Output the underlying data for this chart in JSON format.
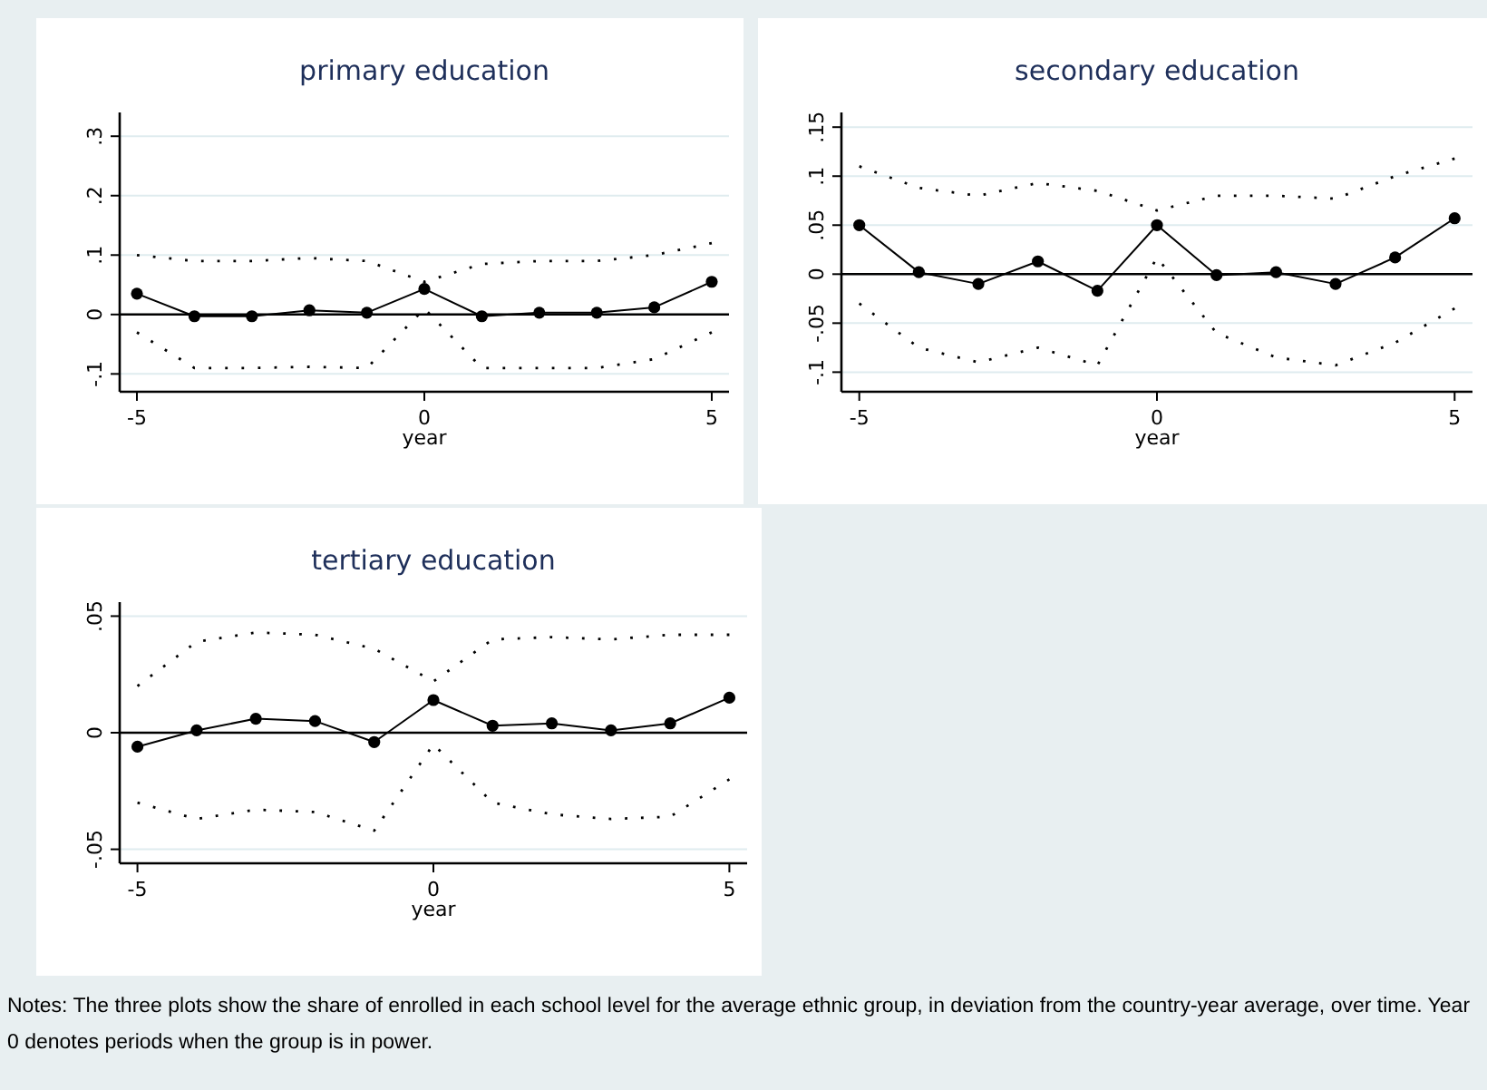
{
  "chart_data": [
    {
      "type": "line",
      "title": "primary education",
      "xlabel": "year",
      "x": [
        -5,
        -4,
        -3,
        -2,
        -1,
        0,
        1,
        2,
        3,
        4,
        5
      ],
      "xlim": [
        -5.3,
        5.3
      ],
      "xticks": [
        -5,
        0,
        5
      ],
      "ylim": [
        -0.13,
        0.34
      ],
      "yticks": [
        {
          "value": -0.1,
          "label": "-.1"
        },
        {
          "value": 0,
          "label": "0"
        },
        {
          "value": 0.1,
          "label": ".1"
        },
        {
          "value": 0.2,
          "label": ".2"
        },
        {
          "value": 0.3,
          "label": ".3"
        }
      ],
      "grid": "y",
      "ref_lines": [
        {
          "axis": "y",
          "value": 0,
          "color": "#000000"
        }
      ],
      "series": [
        {
          "color": "#000000",
          "marker": "circle",
          "line_style": "solid",
          "values": [
            0.035,
            -0.003,
            -0.003,
            0.007,
            0.003,
            0.043,
            -0.003,
            0.003,
            0.003,
            0.012,
            0.055
          ]
        },
        {
          "color": "#000000",
          "marker": "none",
          "line_style": "dotted",
          "values": [
            0.1,
            0.09,
            0.09,
            0.095,
            0.09,
            0.055,
            0.085,
            0.09,
            0.09,
            0.1,
            0.12
          ]
        },
        {
          "color": "#000000",
          "marker": "none",
          "line_style": "dotted",
          "values": [
            -0.03,
            -0.09,
            -0.09,
            -0.088,
            -0.09,
            0.01,
            -0.09,
            -0.09,
            -0.09,
            -0.075,
            -0.03
          ]
        }
      ]
    },
    {
      "type": "line",
      "title": "secondary education",
      "xlabel": "year",
      "x": [
        -5,
        -4,
        -3,
        -2,
        -1,
        0,
        1,
        2,
        3,
        4,
        5
      ],
      "xlim": [
        -5.3,
        5.3
      ],
      "xticks": [
        -5,
        0,
        5
      ],
      "ylim": [
        -0.12,
        0.165
      ],
      "yticks": [
        {
          "value": -0.1,
          "label": "-.1"
        },
        {
          "value": -0.05,
          "label": "-.05"
        },
        {
          "value": 0,
          "label": "0"
        },
        {
          "value": 0.05,
          "label": ".05"
        },
        {
          "value": 0.1,
          "label": ".1"
        },
        {
          "value": 0.15,
          "label": ".15"
        }
      ],
      "grid": "y",
      "ref_lines": [
        {
          "axis": "y",
          "value": 0,
          "color": "#000000"
        }
      ],
      "series": [
        {
          "color": "#000000",
          "marker": "circle",
          "line_style": "solid",
          "values": [
            0.05,
            0.002,
            -0.01,
            0.013,
            -0.017,
            0.05,
            -0.001,
            0.002,
            -0.01,
            0.017,
            0.057
          ]
        },
        {
          "color": "#000000",
          "marker": "none",
          "line_style": "dotted",
          "values": [
            0.11,
            0.088,
            0.08,
            0.093,
            0.085,
            0.065,
            0.08,
            0.08,
            0.077,
            0.1,
            0.118
          ]
        },
        {
          "color": "#000000",
          "marker": "none",
          "line_style": "dotted",
          "values": [
            -0.03,
            -0.075,
            -0.09,
            -0.075,
            -0.093,
            0.017,
            -0.06,
            -0.085,
            -0.093,
            -0.07,
            -0.035
          ]
        }
      ]
    },
    {
      "type": "line",
      "title": "tertiary education",
      "xlabel": "year",
      "x": [
        -5,
        -4,
        -3,
        -2,
        -1,
        0,
        1,
        2,
        3,
        4,
        5
      ],
      "xlim": [
        -5.3,
        5.3
      ],
      "xticks": [
        -5,
        0,
        5
      ],
      "ylim": [
        -0.056,
        0.056
      ],
      "yticks": [
        {
          "value": -0.05,
          "label": "-.05"
        },
        {
          "value": 0,
          "label": "0"
        },
        {
          "value": 0.05,
          "label": ".05"
        }
      ],
      "grid": "y",
      "ref_lines": [
        {
          "axis": "y",
          "value": 0,
          "color": "#000000"
        }
      ],
      "annotations": [
        "Notes: The three plots show the share of enrolled in each school level for the average ethnic group, in deviation from the country-year average, over time. Year 0 denotes periods when the group is in power."
      ],
      "series": [
        {
          "color": "#000000",
          "marker": "circle",
          "line_style": "solid",
          "values": [
            -0.006,
            0.001,
            0.006,
            0.005,
            -0.004,
            0.014,
            0.003,
            0.004,
            0.001,
            0.004,
            0.015
          ]
        },
        {
          "color": "#000000",
          "marker": "none",
          "line_style": "dotted",
          "values": [
            0.02,
            0.039,
            0.043,
            0.042,
            0.036,
            0.022,
            0.04,
            0.041,
            0.04,
            0.042,
            0.042
          ]
        },
        {
          "color": "#000000",
          "marker": "none",
          "line_style": "dotted",
          "values": [
            -0.03,
            -0.037,
            -0.033,
            -0.034,
            -0.042,
            -0.005,
            -0.03,
            -0.035,
            -0.037,
            -0.036,
            -0.02
          ]
        }
      ]
    }
  ]
}
